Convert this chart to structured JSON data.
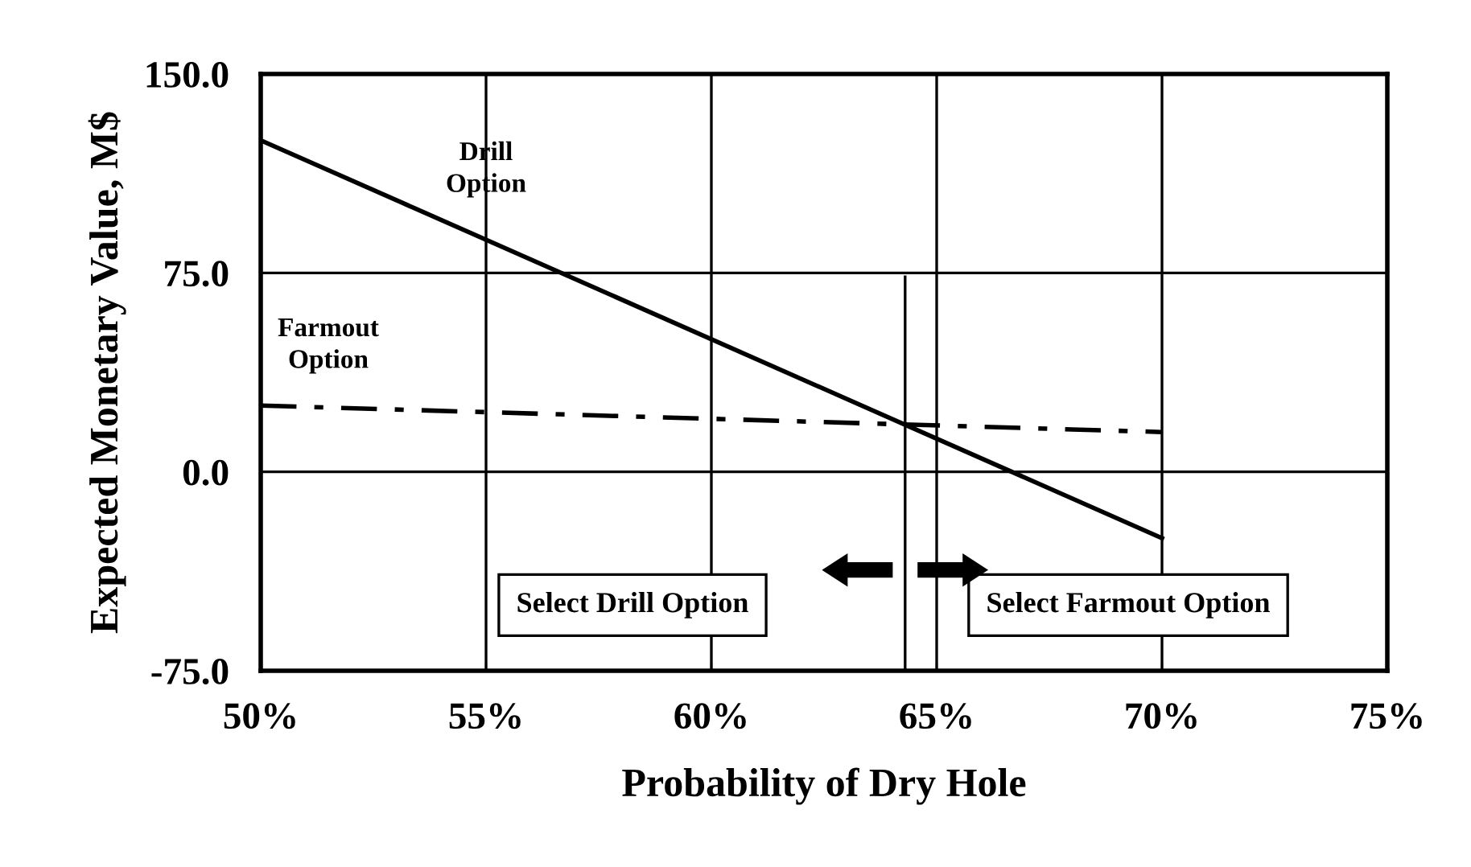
{
  "chart_data": {
    "type": "line",
    "xlabel": "Probability of Dry Hole",
    "ylabel": "Expected Monetary Value, M$",
    "x": [
      50,
      70
    ],
    "series": [
      {
        "name": "Drill Option",
        "color": "#000000",
        "values": [
          125,
          -25
        ],
        "line_style": "solid"
      },
      {
        "name": "Farmout Option",
        "color": "#000000",
        "values": [
          25,
          15
        ],
        "line_style": "dashed"
      }
    ],
    "xlim": [
      50,
      75
    ],
    "xticks": [
      {
        "value": 50,
        "label": "50%"
      },
      {
        "value": 55,
        "label": "55%"
      },
      {
        "value": 60,
        "label": "60%"
      },
      {
        "value": 65,
        "label": "65%"
      },
      {
        "value": 70,
        "label": "70%"
      },
      {
        "value": 75,
        "label": "75%"
      }
    ],
    "ylim": [
      -75,
      150
    ],
    "yticks": [
      {
        "value": -75,
        "label": "-75.0"
      },
      {
        "value": 0,
        "label": "0.0"
      },
      {
        "value": 75,
        "label": "75.0"
      },
      {
        "value": 150,
        "label": "150.0"
      }
    ],
    "grid": true,
    "marker": "none",
    "ref_lines": [
      {
        "axis": "x",
        "value": 64.3,
        "color": "#000000"
      }
    ],
    "annotations": [
      "Select Drill Option",
      "Select Farmout Option"
    ]
  }
}
